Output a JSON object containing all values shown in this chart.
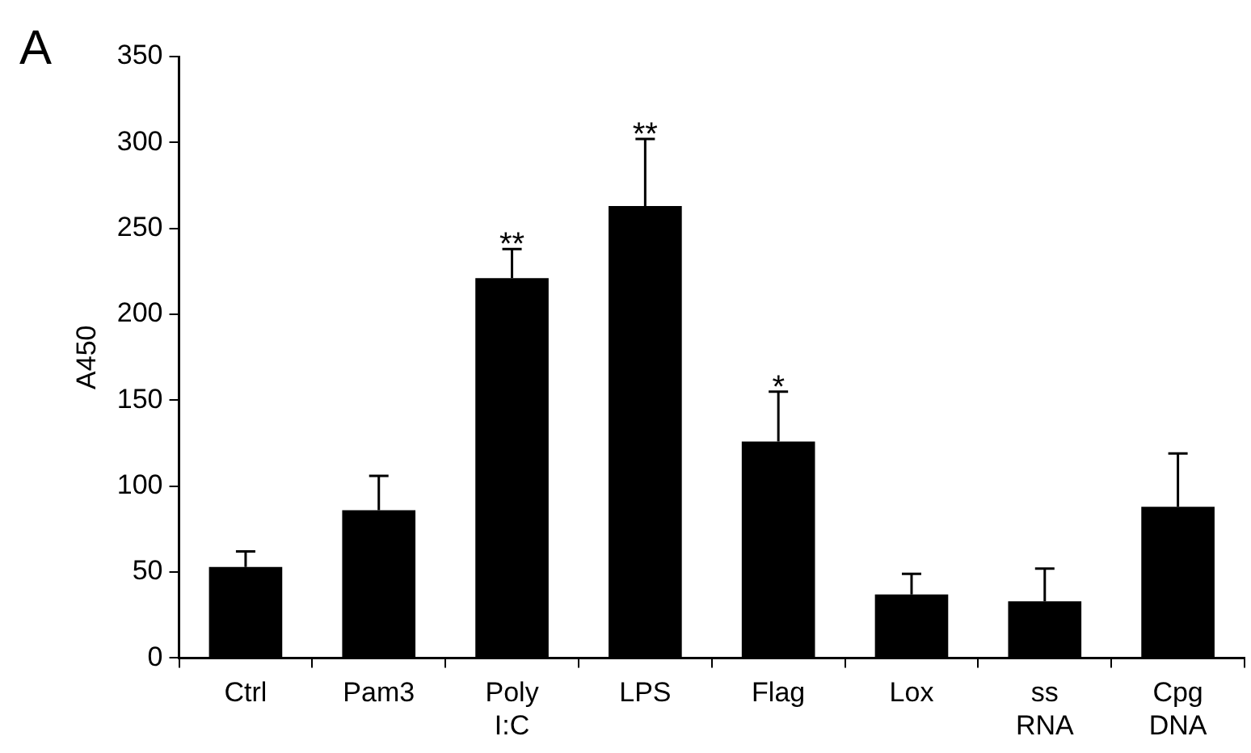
{
  "chart_data": {
    "type": "bar",
    "ylabel": "A450",
    "categories": [
      "Ctrl",
      "Pam3",
      "Poly I:C",
      "LPS",
      "Flag",
      "Lox",
      "ss RNA",
      "Cpg DNA"
    ],
    "values": [
      53,
      86,
      221,
      263,
      126,
      37,
      33,
      88
    ],
    "errors": [
      [
        53,
        62
      ],
      [
        86,
        106
      ],
      [
        221,
        238
      ],
      [
        263,
        302
      ],
      [
        126,
        155
      ],
      [
        37,
        49
      ],
      [
        33,
        52
      ],
      [
        88,
        119
      ]
    ],
    "color": "#000000",
    "ylim": [
      0,
      350
    ],
    "yticks": [
      0,
      50,
      100,
      150,
      200,
      250,
      300,
      350
    ],
    "grid": false,
    "legend": false,
    "annotations": [
      "A",
      {
        "text": "**",
        "x": "Poly I:C",
        "y": 238
      },
      {
        "text": "**",
        "x": "LPS",
        "y": 302
      },
      {
        "text": "*",
        "x": "Flag",
        "y": 155
      }
    ]
  }
}
